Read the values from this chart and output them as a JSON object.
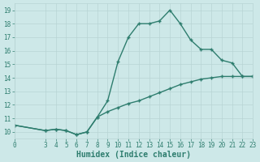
{
  "xlabel": "Humidex (Indice chaleur)",
  "x_upper": [
    0,
    3,
    4,
    5,
    6,
    7,
    8,
    9,
    10,
    11,
    12,
    13,
    14,
    15,
    16,
    17,
    18,
    19,
    20,
    21,
    22,
    23
  ],
  "y_upper": [
    10.5,
    10.1,
    10.2,
    10.1,
    9.8,
    10.0,
    11.1,
    12.3,
    15.2,
    17.0,
    18.0,
    18.0,
    18.2,
    19.0,
    18.0,
    16.8,
    16.1,
    16.1,
    15.3,
    15.1,
    14.1,
    14.1
  ],
  "x_lower": [
    0,
    3,
    4,
    5,
    6,
    7,
    8,
    9,
    10,
    11,
    12,
    13,
    14,
    15,
    16,
    17,
    18,
    19,
    20,
    21,
    22,
    23
  ],
  "y_lower": [
    10.5,
    10.1,
    10.2,
    10.1,
    9.8,
    10.0,
    11.1,
    11.5,
    11.8,
    12.1,
    12.3,
    12.6,
    12.9,
    13.2,
    13.5,
    13.7,
    13.9,
    14.0,
    14.1,
    14.1,
    14.1,
    14.1
  ],
  "line_color": "#2e7d6e",
  "bg_color": "#cde8e8",
  "grid_color": "#b8d4d4",
  "xlim": [
    0,
    23
  ],
  "ylim": [
    9.5,
    19.5
  ],
  "yticks": [
    10,
    11,
    12,
    13,
    14,
    15,
    16,
    17,
    18,
    19
  ],
  "xticks": [
    0,
    3,
    4,
    5,
    6,
    7,
    8,
    9,
    10,
    11,
    12,
    13,
    14,
    15,
    16,
    17,
    18,
    19,
    20,
    21,
    22,
    23
  ],
  "marker": "+",
  "marker_size": 3.5,
  "line_width": 1.0
}
